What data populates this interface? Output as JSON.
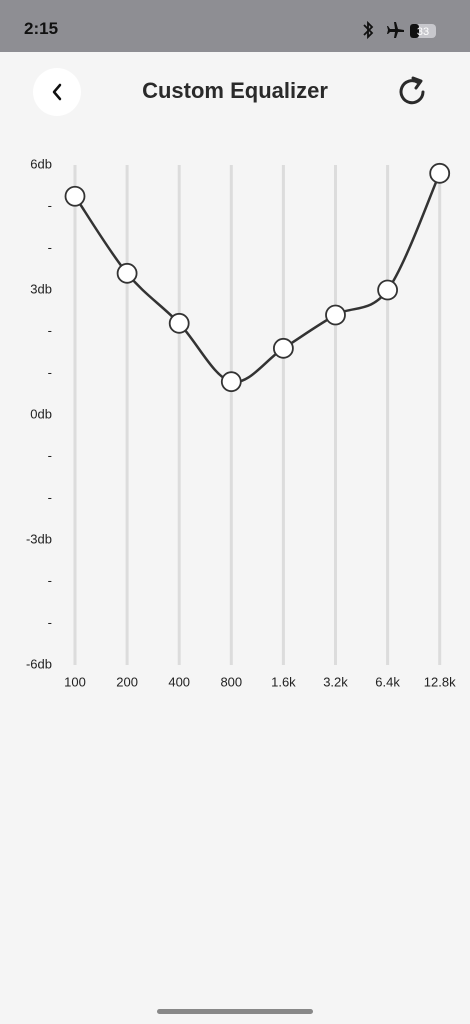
{
  "status_bar": {
    "time": "2:15",
    "battery": "33"
  },
  "header": {
    "title": "Custom Equalizer"
  },
  "chart_data": {
    "type": "line",
    "categories": [
      "100",
      "200",
      "400",
      "800",
      "1.6k",
      "3.2k",
      "6.4k",
      "12.8k"
    ],
    "values": [
      5.25,
      3.4,
      2.2,
      0.8,
      1.6,
      2.4,
      3.0,
      5.8
    ],
    "color": "#333333",
    "ylim": [
      -6,
      6
    ],
    "yticks": [
      {
        "value": 6,
        "label": "6db"
      },
      {
        "value": 5,
        "label": "-"
      },
      {
        "value": 4,
        "label": "-"
      },
      {
        "value": 3,
        "label": "3db"
      },
      {
        "value": 2,
        "label": "-"
      },
      {
        "value": 1,
        "label": "-"
      },
      {
        "value": 0,
        "label": "0db"
      },
      {
        "value": -1,
        "label": "-"
      },
      {
        "value": -2,
        "label": "-"
      },
      {
        "value": -3,
        "label": "-3db"
      },
      {
        "value": -4,
        "label": "-"
      },
      {
        "value": -5,
        "label": "-"
      },
      {
        "value": -6,
        "label": "-6db"
      }
    ]
  }
}
